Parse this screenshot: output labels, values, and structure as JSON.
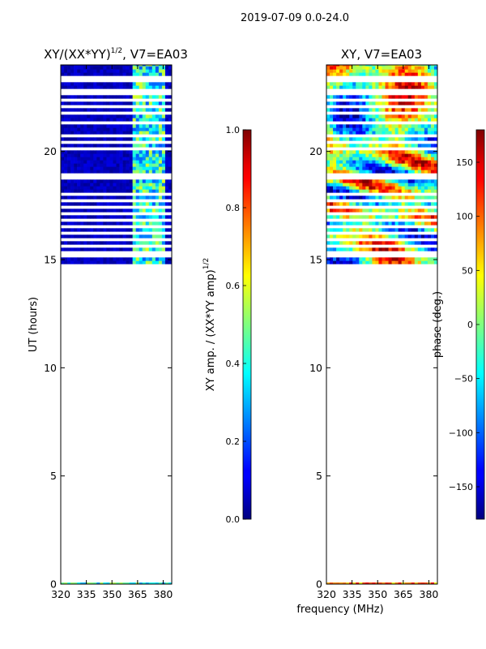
{
  "figure": {
    "suptitle": "2019-07-09 0.0-24.0",
    "shared_xlabel": "frequency (MHz)"
  },
  "chart_data": [
    {
      "type": "heatmap",
      "title": "XY/(XX*YY)",
      "title_exponent": "1/2",
      "title_suffix": ", V7=EA03",
      "xlabel": "",
      "ylabel": "UT (hours)",
      "xlim": [
        320,
        385
      ],
      "ylim": [
        0,
        24
      ],
      "xticks": [
        320,
        335,
        350,
        365,
        380
      ],
      "yticks": [
        0,
        5,
        10,
        15,
        20
      ],
      "data_start_hour": 14.8,
      "data_end_hour": 24,
      "rfi_band_mhz": [
        362,
        382
      ],
      "colormap": "jet",
      "colorbar": {
        "label": "XY amp. / (XX*YY amp)",
        "label_exponent": "1/2",
        "range": [
          0.0,
          1.0
        ],
        "ticks": [
          "0.0",
          "0.2",
          "0.4",
          "0.6",
          "0.8",
          "1.0"
        ],
        "tick_values": [
          0.0,
          0.2,
          0.4,
          0.6,
          0.8,
          1.0
        ]
      }
    },
    {
      "type": "heatmap",
      "title": "XY, V7=EA03",
      "xlabel": "frequency (MHz)",
      "ylabel": "",
      "xlim": [
        320,
        385
      ],
      "ylim": [
        0,
        24
      ],
      "xticks": [
        320,
        335,
        350,
        365,
        380
      ],
      "yticks": [
        0,
        5,
        10,
        15,
        20
      ],
      "data_start_hour": 14.8,
      "data_end_hour": 24,
      "colormap": "jet",
      "colorbar": {
        "label": "phase (deg.)",
        "range": [
          -180,
          180
        ],
        "ticks": [
          "−150",
          "−100",
          "−50",
          "0",
          "50",
          "100",
          "150"
        ],
        "tick_values": [
          -150,
          -100,
          -50,
          0,
          50,
          100,
          150
        ]
      }
    }
  ],
  "masked_hours": [
    15.05,
    15.3,
    15.55,
    15.9,
    16.2,
    16.4,
    16.7,
    17.05,
    17.35,
    17.7,
    17.95,
    18.7,
    18.85,
    20.1,
    20.4,
    20.6,
    21.3,
    21.7,
    22.0,
    22.25,
    22.55,
    22.75,
    23.15,
    23.4
  ]
}
